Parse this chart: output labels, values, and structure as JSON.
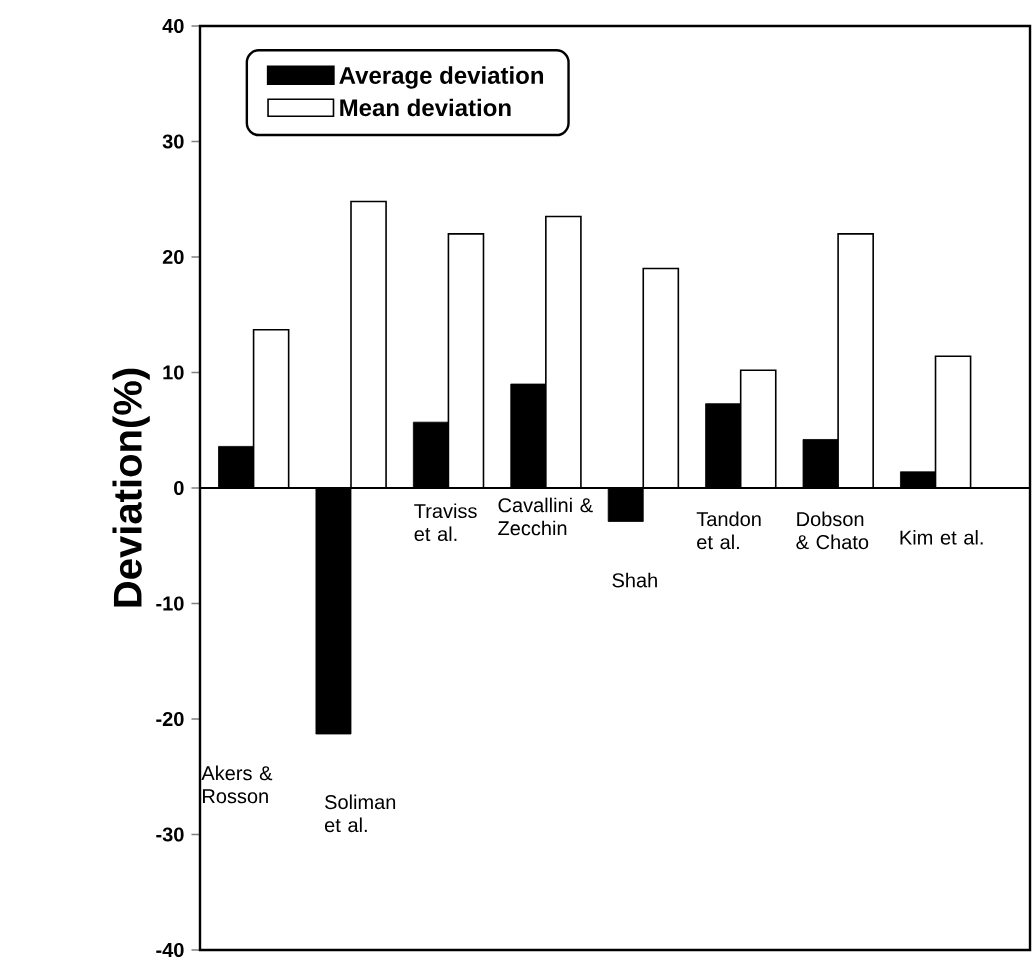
{
  "chart_data": {
    "type": "bar",
    "ylabel": "Deviation(%)",
    "categories": [
      "Akers & Rosson",
      "Soliman et al.",
      "Traviss et al.",
      "Cavallini & Zecchin",
      "Shah",
      "Tandon et al.",
      "Dobson & Chato",
      "Kim et al."
    ],
    "series": [
      {
        "name": "Average deviation",
        "color": "#000000",
        "values": [
          3.6,
          -21.3,
          5.7,
          9.0,
          -2.9,
          7.3,
          4.2,
          1.4
        ]
      },
      {
        "name": "Mean deviation",
        "color": "#000000",
        "values": [
          13.7,
          24.8,
          22.0,
          23.5,
          19.0,
          10.2,
          22.0,
          11.4
        ]
      }
    ],
    "ylim": [
      -40,
      40
    ],
    "yticks": [
      -40,
      -30,
      -20,
      -10,
      0,
      10,
      20,
      30,
      40
    ],
    "legend": "top left",
    "grid": false
  }
}
